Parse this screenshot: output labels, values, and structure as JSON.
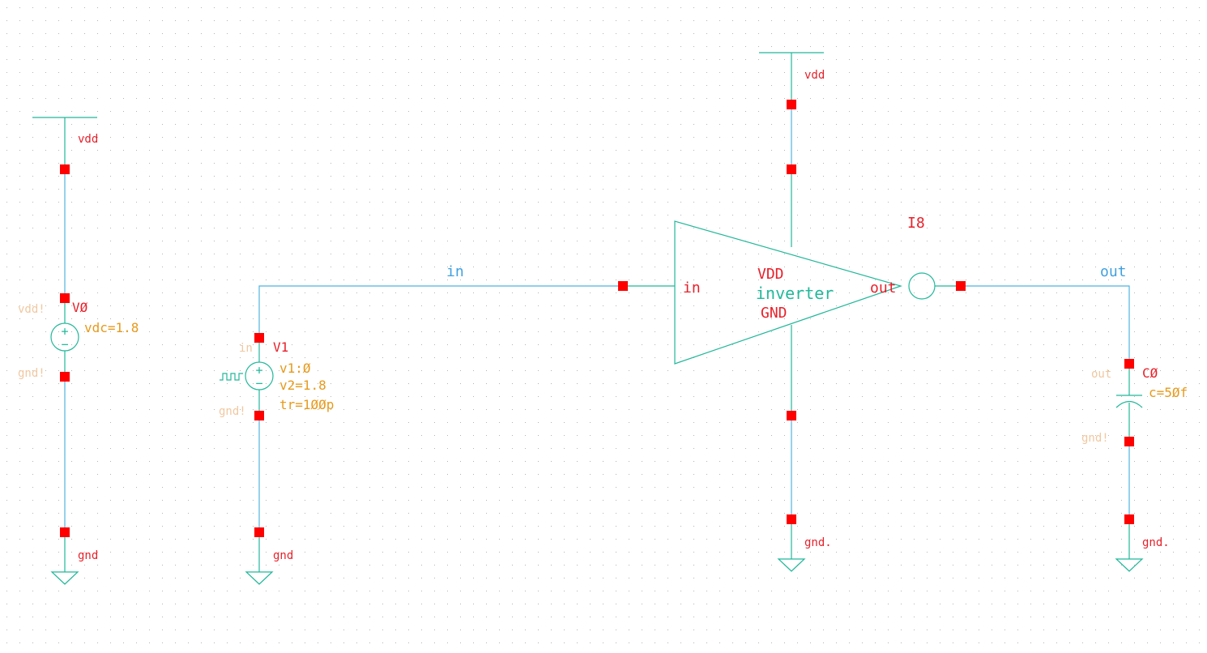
{
  "colors": {
    "background": "#ffffff",
    "grid_dot": "#b4b4b4",
    "wire": "#4fb3e0",
    "symbol": "#22b89a",
    "pin": "#ff0000",
    "instance_label": "#e8202a",
    "param_label": "#e69a1c",
    "pin_name": "#f0c8a0",
    "net_label": "#3fa0e0"
  },
  "labels": {
    "vdd_left": "vdd",
    "gnd_left": "gnd",
    "v0_name": "VØ",
    "v0_param": "vdc=1.8",
    "v0_pin_plus": "vdd!",
    "v0_pin_minus": "gnd!",
    "net_in": "in",
    "v1_name": "V1",
    "v1_pin_plus": "in",
    "v1_pin_minus": "gnd!",
    "v1_param1": "v1:Ø",
    "v1_param2": "v2=1.8",
    "v1_param3": "tr=1ØØp",
    "gnd_v1": "gnd",
    "vdd_inv": "vdd",
    "inv_instance": "I8",
    "inv_pin_in": "in",
    "inv_pin_out": "out",
    "inv_vdd": "VDD",
    "inv_cell": "inverter",
    "inv_gnd": "GND",
    "gnd_inv": "gnd.",
    "net_out": "out",
    "c0_name": "CØ",
    "c0_param": "c=5Øf",
    "c0_pin_plus": "out",
    "c0_pin_minus": "gnd!",
    "gnd_c0": "gnd."
  },
  "symbols": {
    "sources": [
      "dc-voltage-source-icon",
      "pulse-voltage-source-icon"
    ],
    "grounds": [
      "ground-icon"
    ],
    "supplies": [
      "vdd-supply-icon"
    ]
  }
}
